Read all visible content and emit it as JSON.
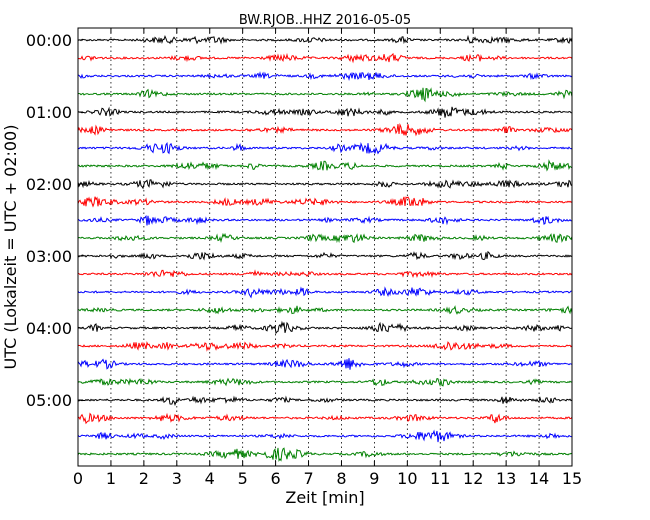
{
  "chart_data": {
    "type": "line",
    "title": "BW.RJOB..HHZ 2016-05-05",
    "xlabel": "Zeit  [min]",
    "ylabel": "UTC (Lokalzeit = UTC + 02:00)",
    "xlim": [
      0,
      15
    ],
    "x_ticks": [
      "0",
      "1",
      "2",
      "3",
      "4",
      "5",
      "6",
      "7",
      "8",
      "9",
      "10",
      "11",
      "12",
      "13",
      "14",
      "15"
    ],
    "y_ticks": [
      "00:00",
      "01:00",
      "02:00",
      "03:00",
      "04:00",
      "05:00"
    ],
    "grid": "vertical dotted at each minute",
    "trace_interval_minutes": 15,
    "trace_count": 24,
    "trace_color_cycle": [
      "#000000",
      "#ff0000",
      "#0000ff",
      "#008000"
    ]
  }
}
